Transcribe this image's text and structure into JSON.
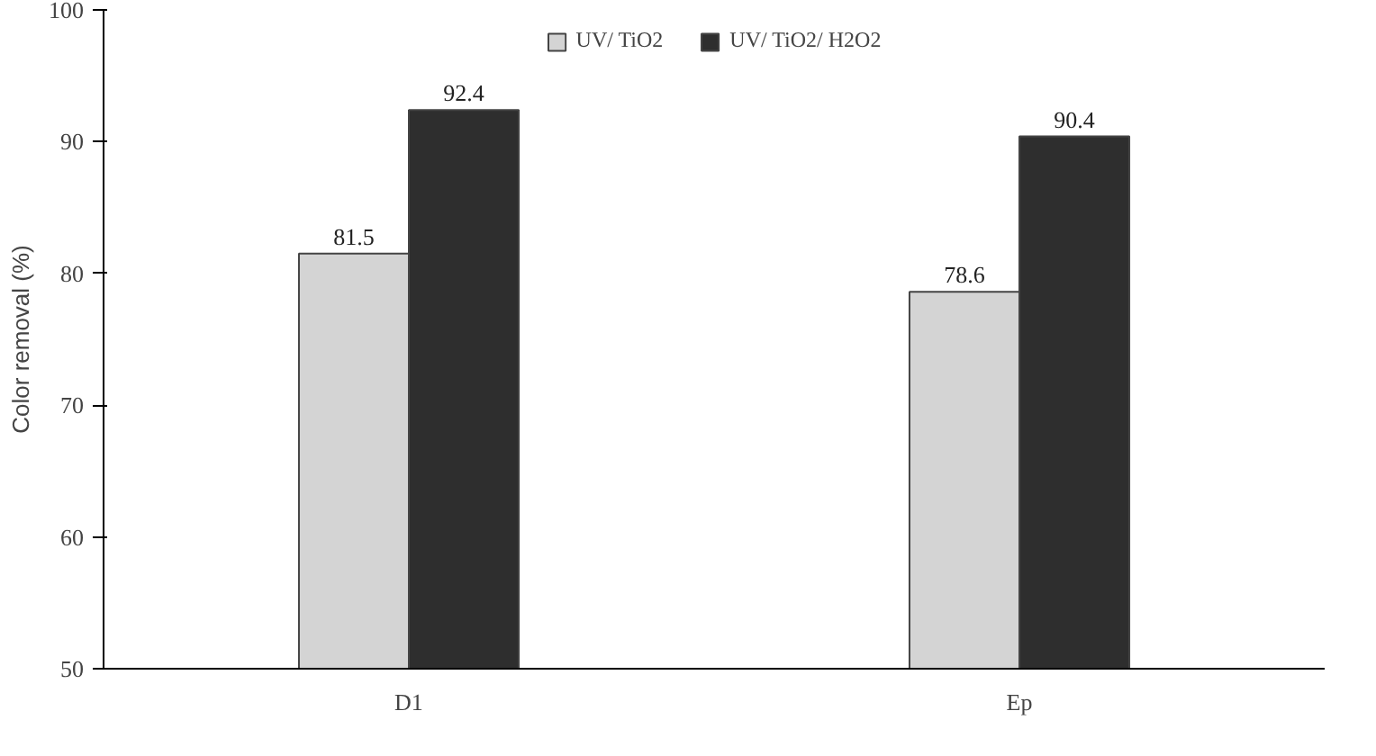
{
  "chart_data": {
    "type": "bar",
    "ylabel": "Color removal (%)",
    "categories": [
      "D1",
      "Ep"
    ],
    "series": [
      {
        "name": "UV/ TiO2",
        "color": "#d4d4d4",
        "values": [
          81.5,
          78.6
        ]
      },
      {
        "name": "UV/ TiO2/ H2O2",
        "color": "#2e2e2e",
        "values": [
          92.4,
          90.4
        ]
      }
    ],
    "ylim": [
      50,
      100
    ],
    "yticks": [
      50,
      60,
      70,
      80,
      90,
      100
    ],
    "grid": false,
    "legend": "top",
    "data_labels": true
  }
}
